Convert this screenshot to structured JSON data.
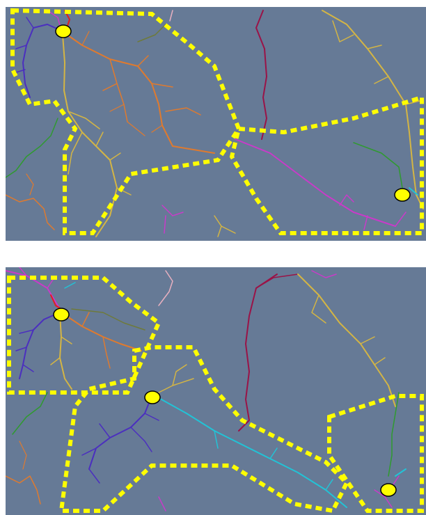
{
  "figure": {
    "panel_count": 2,
    "background_color": "#667a96",
    "outline_color": "#ffff00",
    "marker_color": "#ffff00",
    "marker_outline_color": "#000000",
    "branch_colors": [
      "#4b2fbf",
      "#e07a2e",
      "#d4b544",
      "#c93bc9",
      "#9a1347",
      "#2f9a2f",
      "#22c3d6",
      "#e01e1e",
      "#6e7a3a",
      "#e8b0c0"
    ]
  }
}
